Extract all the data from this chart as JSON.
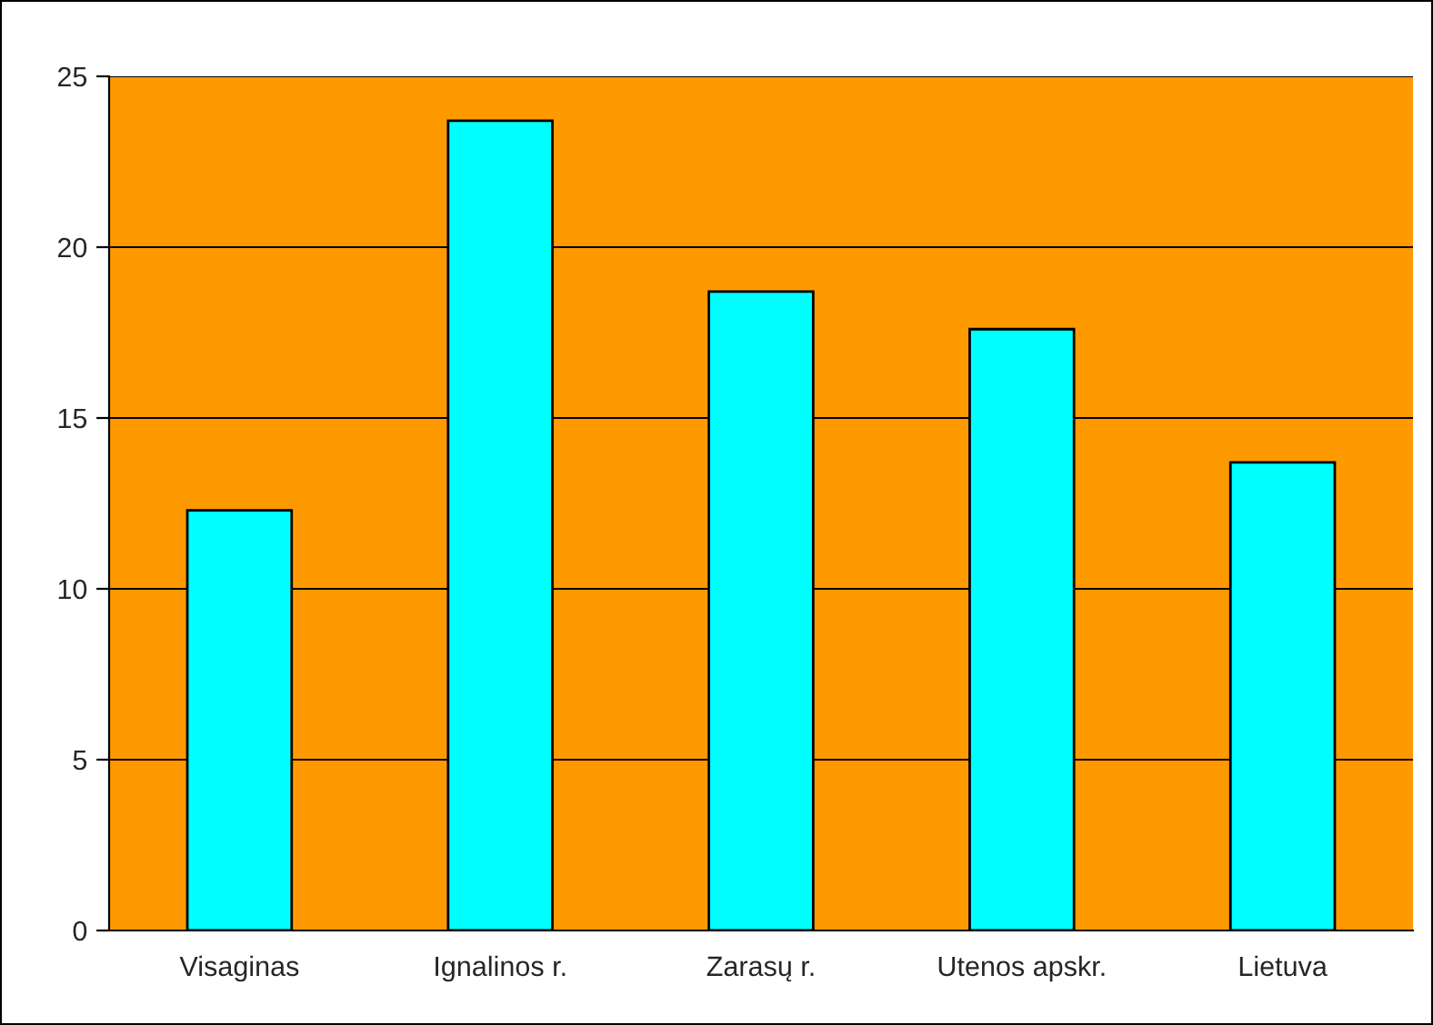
{
  "chart_data": {
    "type": "bar",
    "categories": [
      "Visaginas",
      "Ignalinos r.",
      "Zarasų r.",
      "Utenos apskr.",
      "Lietuva"
    ],
    "values": [
      12.3,
      23.7,
      18.7,
      17.6,
      13.7
    ],
    "color": "#00ffff",
    "ylim": [
      0,
      25
    ],
    "yticks": [
      0,
      5,
      10,
      15,
      20,
      25
    ],
    "grid": "y",
    "legend": false
  }
}
